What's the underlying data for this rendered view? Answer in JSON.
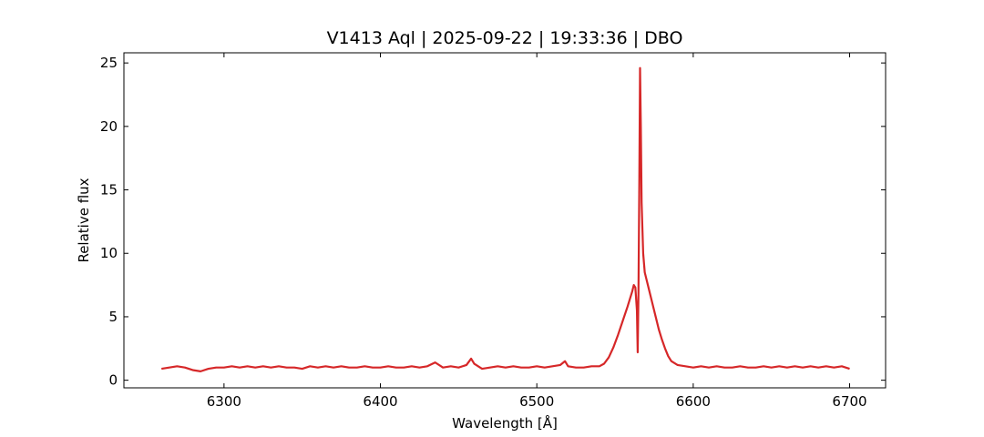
{
  "chart_data": {
    "type": "line",
    "title": "V1413 Aql | 2025-09-22 | 19:33:36 | DBO",
    "xlabel": "Wavelength [Å]",
    "ylabel": "Relative flux",
    "xlim": [
      6236,
      6723
    ],
    "ylim": [
      -0.6,
      25.8
    ],
    "xticks": [
      6300,
      6400,
      6500,
      6600,
      6700
    ],
    "xtick_labels": [
      "6300",
      "6400",
      "6500",
      "6600",
      "6700"
    ],
    "yticks": [
      0,
      5,
      10,
      15,
      20,
      25
    ],
    "ytick_labels": [
      "0",
      "5",
      "10",
      "15",
      "20",
      "25"
    ],
    "grid": false,
    "series": [
      {
        "color": "#d62728",
        "points": [
          [
            6260,
            0.9
          ],
          [
            6265,
            1.0
          ],
          [
            6270,
            1.1
          ],
          [
            6275,
            1.0
          ],
          [
            6280,
            0.8
          ],
          [
            6285,
            0.7
          ],
          [
            6290,
            0.9
          ],
          [
            6295,
            1.0
          ],
          [
            6300,
            1.0
          ],
          [
            6305,
            1.1
          ],
          [
            6310,
            1.0
          ],
          [
            6315,
            1.1
          ],
          [
            6320,
            1.0
          ],
          [
            6325,
            1.1
          ],
          [
            6330,
            1.0
          ],
          [
            6335,
            1.1
          ],
          [
            6340,
            1.0
          ],
          [
            6345,
            1.0
          ],
          [
            6350,
            0.9
          ],
          [
            6355,
            1.1
          ],
          [
            6360,
            1.0
          ],
          [
            6365,
            1.1
          ],
          [
            6370,
            1.0
          ],
          [
            6375,
            1.1
          ],
          [
            6380,
            1.0
          ],
          [
            6385,
            1.0
          ],
          [
            6390,
            1.1
          ],
          [
            6395,
            1.0
          ],
          [
            6400,
            1.0
          ],
          [
            6405,
            1.1
          ],
          [
            6410,
            1.0
          ],
          [
            6415,
            1.0
          ],
          [
            6420,
            1.1
          ],
          [
            6425,
            1.0
          ],
          [
            6430,
            1.1
          ],
          [
            6435,
            1.4
          ],
          [
            6440,
            1.0
          ],
          [
            6445,
            1.1
          ],
          [
            6450,
            1.0
          ],
          [
            6455,
            1.2
          ],
          [
            6458,
            1.7
          ],
          [
            6460,
            1.3
          ],
          [
            6465,
            0.9
          ],
          [
            6470,
            1.0
          ],
          [
            6475,
            1.1
          ],
          [
            6480,
            1.0
          ],
          [
            6485,
            1.1
          ],
          [
            6490,
            1.0
          ],
          [
            6495,
            1.0
          ],
          [
            6500,
            1.1
          ],
          [
            6505,
            1.0
          ],
          [
            6510,
            1.1
          ],
          [
            6515,
            1.2
          ],
          [
            6518,
            1.5
          ],
          [
            6520,
            1.1
          ],
          [
            6525,
            1.0
          ],
          [
            6530,
            1.0
          ],
          [
            6535,
            1.1
          ],
          [
            6540,
            1.1
          ],
          [
            6543,
            1.3
          ],
          [
            6546,
            1.8
          ],
          [
            6549,
            2.6
          ],
          [
            6552,
            3.6
          ],
          [
            6555,
            4.7
          ],
          [
            6558,
            5.8
          ],
          [
            6561,
            7.0
          ],
          [
            6562,
            7.5
          ],
          [
            6563,
            7.3
          ],
          [
            6564,
            5.5
          ],
          [
            6564.5,
            2.2
          ],
          [
            6565,
            7.0
          ],
          [
            6565.5,
            15.0
          ],
          [
            6566,
            24.6
          ],
          [
            6566.5,
            20.0
          ],
          [
            6567,
            14.0
          ],
          [
            6568,
            10.0
          ],
          [
            6569,
            8.5
          ],
          [
            6570,
            8.0
          ],
          [
            6572,
            7.0
          ],
          [
            6574,
            6.0
          ],
          [
            6576,
            5.0
          ],
          [
            6578,
            4.0
          ],
          [
            6580,
            3.2
          ],
          [
            6582,
            2.5
          ],
          [
            6584,
            1.9
          ],
          [
            6586,
            1.5
          ],
          [
            6590,
            1.2
          ],
          [
            6595,
            1.1
          ],
          [
            6600,
            1.0
          ],
          [
            6605,
            1.1
          ],
          [
            6610,
            1.0
          ],
          [
            6615,
            1.1
          ],
          [
            6620,
            1.0
          ],
          [
            6625,
            1.0
          ],
          [
            6630,
            1.1
          ],
          [
            6635,
            1.0
          ],
          [
            6640,
            1.0
          ],
          [
            6645,
            1.1
          ],
          [
            6650,
            1.0
          ],
          [
            6655,
            1.1
          ],
          [
            6660,
            1.0
          ],
          [
            6665,
            1.1
          ],
          [
            6670,
            1.0
          ],
          [
            6675,
            1.1
          ],
          [
            6680,
            1.0
          ],
          [
            6685,
            1.1
          ],
          [
            6690,
            1.0
          ],
          [
            6695,
            1.1
          ],
          [
            6700,
            0.9
          ]
        ]
      }
    ]
  }
}
